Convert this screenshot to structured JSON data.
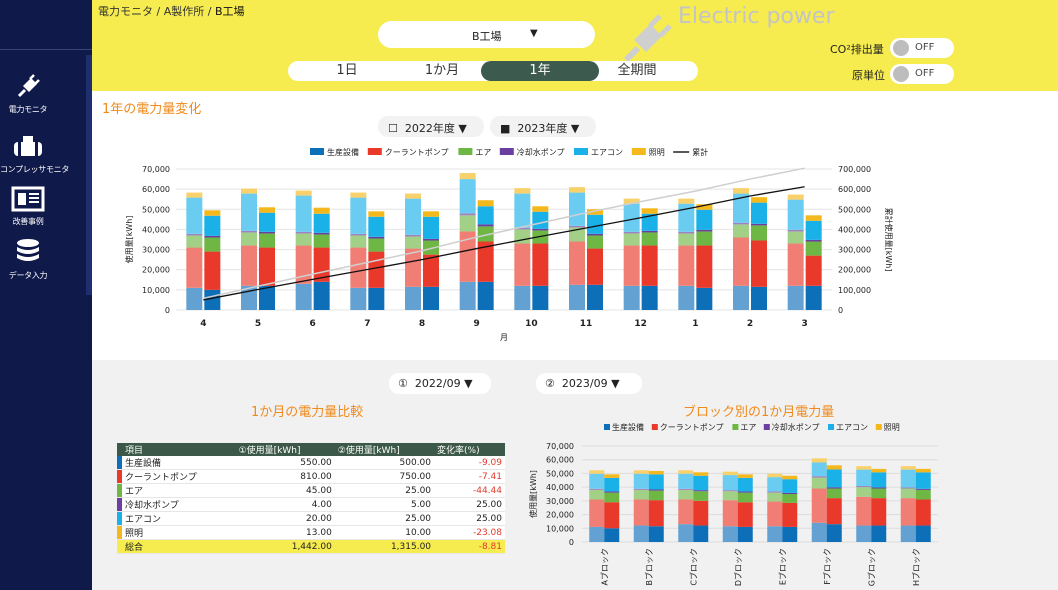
{
  "breadcrumb": {
    "items": [
      "電力モニタ",
      "A製作所",
      "B工場"
    ],
    "sep": "/"
  },
  "sidebar": {
    "items": [
      {
        "label": "電力モニタ",
        "icon": "plug-icon"
      },
      {
        "label": "コンプレッサモニタ",
        "icon": "compressor-icon"
      },
      {
        "label": "改善事例",
        "icon": "document-icon"
      },
      {
        "label": "データ入力",
        "icon": "database-icon"
      }
    ]
  },
  "header": {
    "factory_select": {
      "value": "B工場",
      "arrow": "▼"
    },
    "brand": "Electric power",
    "tabs": [
      {
        "label": "1日",
        "active": false
      },
      {
        "label": "1か月",
        "active": false
      },
      {
        "label": "1年",
        "active": true
      },
      {
        "label": "全期間",
        "active": false
      }
    ],
    "co2_label": "CO²排出量",
    "co2_toggle": "OFF",
    "unit_label": "原単位",
    "unit_toggle": "OFF"
  },
  "yearly": {
    "title": "1年の電力量変化",
    "year1": {
      "marker": "☐",
      "label": "2022年度",
      "arrow": "▼"
    },
    "year2": {
      "marker": "■",
      "label": "2023年度",
      "arrow": "▼"
    }
  },
  "monthly": {
    "month1": {
      "marker": "①",
      "label": "2022/09",
      "arrow": "▼"
    },
    "month2": {
      "marker": "②",
      "label": "2023/09",
      "arrow": "▼"
    },
    "compare_title": "1か月の電力量比較",
    "block_title": "ブロック別の1か月電力量",
    "table": {
      "headers": [
        "項目",
        "①使用量[kWh]",
        "②使用量[kWh]",
        "変化率(%)"
      ],
      "rows": [
        {
          "name": "生産設備",
          "v1": "550.00",
          "v2": "500.00",
          "rate": "-9.09",
          "color": "#0d6fb8"
        },
        {
          "name": "クーラントポンプ",
          "v1": "810.00",
          "v2": "750.00",
          "rate": "-7.41",
          "color": "#e8392b"
        },
        {
          "name": "エア",
          "v1": "45.00",
          "v2": "25.00",
          "rate": "-44.44",
          "color": "#6fb745"
        },
        {
          "name": "冷却水ポンプ",
          "v1": "4.00",
          "v2": "5.00",
          "rate": "25.00",
          "color": "#6a3fa0"
        },
        {
          "name": "エアコン",
          "v1": "20.00",
          "v2": "25.00",
          "rate": "25.00",
          "color": "#1ab0e8"
        },
        {
          "name": "照明",
          "v1": "13.00",
          "v2": "10.00",
          "rate": "-23.08",
          "color": "#f5b81c"
        }
      ],
      "total": {
        "name": "総合",
        "v1": "1,442.00",
        "v2": "1,315.00",
        "rate": "-8.81"
      }
    }
  },
  "colors": {
    "production": "#0d6fb8",
    "coolant": "#e8392b",
    "air": "#6fb745",
    "cooling_water": "#6a3fa0",
    "aircon": "#1ab0e8",
    "lighting": "#f5b81c",
    "header_bg": "#f6ec4f",
    "sidebar_bg": "#101a4a",
    "accent": "#f08a1c",
    "table_header": "#3b5848"
  },
  "chart_data": [
    {
      "type": "bar",
      "stacked": true,
      "grouped_by_year": [
        "2022年度",
        "2023年度"
      ],
      "categories": [
        "4",
        "5",
        "6",
        "7",
        "8",
        "9",
        "10",
        "11",
        "12",
        "1",
        "2",
        "3"
      ],
      "xlabel": "月",
      "ylabel": "使用量[kWh]",
      "y2label": "累計使用量[kWh]",
      "ylim": [
        0,
        70000
      ],
      "y2lim": [
        0,
        700000
      ],
      "yticks": [
        "0",
        "10,000",
        "20,000",
        "30,000",
        "40,000",
        "50,000",
        "60,000",
        "70,000"
      ],
      "y2ticks": [
        "0",
        "100,000",
        "200,000",
        "300,000",
        "400,000",
        "500,000",
        "600,000",
        "700,000"
      ],
      "legend": [
        "生産設備",
        "クーラントポンプ",
        "エア",
        "冷却水ポンプ",
        "エアコン",
        "照明",
        "累計"
      ],
      "legend_position": "top",
      "series_2022": [
        {
          "name": "生産設備",
          "values": [
            11000,
            12000,
            13000,
            11000,
            11500,
            14000,
            12000,
            12500,
            12000,
            12000,
            12000,
            12000
          ]
        },
        {
          "name": "クーラントポンプ",
          "values": [
            20000,
            20000,
            19000,
            20000,
            19000,
            25000,
            21000,
            21500,
            20000,
            20000,
            24000,
            21000
          ]
        },
        {
          "name": "エア",
          "values": [
            6000,
            6500,
            6000,
            6000,
            6000,
            8000,
            7000,
            7000,
            6000,
            6000,
            6500,
            6000
          ]
        },
        {
          "name": "冷却水ポンプ",
          "values": [
            800,
            800,
            800,
            800,
            800,
            1000,
            800,
            800,
            800,
            800,
            800,
            800
          ]
        },
        {
          "name": "エアコン",
          "values": [
            18000,
            18500,
            18000,
            18000,
            18000,
            17000,
            17000,
            16500,
            14000,
            14000,
            14500,
            15000
          ]
        },
        {
          "name": "照明",
          "values": [
            2500,
            2500,
            2500,
            2500,
            2500,
            3000,
            2700,
            2700,
            2500,
            2500,
            2700,
            2500
          ]
        }
      ],
      "series_2023": [
        {
          "name": "生産設備",
          "values": [
            10000,
            12000,
            14000,
            11000,
            11500,
            14000,
            12000,
            12500,
            12000,
            11000,
            11500,
            12000
          ]
        },
        {
          "name": "クーラントポンプ",
          "values": [
            19000,
            19000,
            17000,
            18000,
            16000,
            20000,
            21000,
            18000,
            20000,
            21000,
            23000,
            15000
          ]
        },
        {
          "name": "エア",
          "values": [
            7000,
            7000,
            6500,
            6500,
            7000,
            7500,
            6500,
            6500,
            6500,
            7000,
            7500,
            7000
          ]
        },
        {
          "name": "冷却水ポンプ",
          "values": [
            800,
            800,
            800,
            800,
            800,
            1000,
            800,
            800,
            800,
            800,
            800,
            800
          ]
        },
        {
          "name": "エアコン",
          "values": [
            10000,
            9500,
            9500,
            10000,
            11000,
            9000,
            8500,
            9500,
            8500,
            10000,
            10500,
            9500
          ]
        },
        {
          "name": "照明",
          "values": [
            2700,
            2700,
            3000,
            2700,
            2700,
            3000,
            2700,
            2700,
            2700,
            2700,
            2700,
            2700
          ]
        }
      ],
      "cumulative_2023": [
        50000,
        102000,
        152000,
        201000,
        250000,
        305000,
        357000,
        407000,
        458000,
        510000,
        566000,
        612000
      ],
      "cumulative_2022": [
        58000,
        118000,
        178000,
        236000,
        294000,
        362000,
        422000,
        482000,
        538000,
        590000,
        650000,
        704000
      ]
    },
    {
      "type": "bar",
      "stacked": true,
      "categories": [
        "Aブロック",
        "Bブロック",
        "Cブロック",
        "Dブロック",
        "Eブロック",
        "Fブロック",
        "Gブロック",
        "Hブロック"
      ],
      "ylabel": "使用量[kWh]",
      "ylim": [
        0,
        70000
      ],
      "yticks": [
        "0",
        "10,000",
        "20,000",
        "30,000",
        "40,000",
        "50,000",
        "60,000",
        "70,000"
      ],
      "legend": [
        "生産設備",
        "クーラントポンプ",
        "エア",
        "冷却水ポンプ",
        "エアコン",
        "照明"
      ],
      "legend_position": "top",
      "series_1": [
        {
          "name": "生産設備",
          "values": [
            11000,
            12000,
            13000,
            11500,
            11500,
            14000,
            12000,
            12000
          ]
        },
        {
          "name": "クーラントポンプ",
          "values": [
            20000,
            19000,
            18000,
            19000,
            18000,
            25000,
            21000,
            20000
          ]
        },
        {
          "name": "エア",
          "values": [
            7000,
            7000,
            7000,
            6500,
            6500,
            8000,
            7000,
            7000
          ]
        },
        {
          "name": "冷却水ポンプ",
          "values": [
            800,
            800,
            800,
            800,
            800,
            1000,
            800,
            800
          ]
        },
        {
          "name": "エアコン",
          "values": [
            11000,
            11000,
            11000,
            11000,
            10500,
            10000,
            12000,
            13000
          ]
        },
        {
          "name": "照明",
          "values": [
            2500,
            2500,
            2500,
            2500,
            2500,
            3000,
            2500,
            2500
          ]
        }
      ],
      "series_2": [
        {
          "name": "生産設備",
          "values": [
            10000,
            11500,
            12000,
            11000,
            11000,
            13000,
            12000,
            12000
          ]
        },
        {
          "name": "クーラントポンプ",
          "values": [
            19000,
            19000,
            18000,
            18000,
            17500,
            19000,
            20000,
            19000
          ]
        },
        {
          "name": "エア",
          "values": [
            7000,
            7000,
            7000,
            7000,
            6500,
            7000,
            7000,
            7000
          ]
        },
        {
          "name": "冷却水ポンプ",
          "values": [
            800,
            800,
            800,
            800,
            800,
            900,
            800,
            800
          ]
        },
        {
          "name": "エアコン",
          "values": [
            10000,
            11000,
            10500,
            10000,
            10000,
            13000,
            11000,
            12000
          ]
        },
        {
          "name": "照明",
          "values": [
            2500,
            2500,
            2500,
            2500,
            2500,
            3000,
            2500,
            2500
          ]
        }
      ]
    }
  ]
}
